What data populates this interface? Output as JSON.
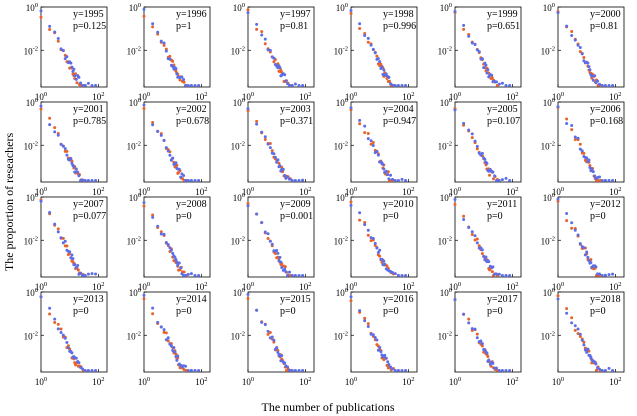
{
  "chart_data": {
    "type": "scatter",
    "layout": "4x6 grid of small multiples, log-log axes",
    "xlabel": "The number of publications",
    "ylabel": "The proportion of reseachers",
    "xscale": "log",
    "yscale": "log",
    "xlim": [
      1,
      200
    ],
    "ylim": [
      0.0002,
      1
    ],
    "x_ticks": [
      {
        "base": "10",
        "exp": "0",
        "value": 1
      },
      {
        "base": "10",
        "exp": "2",
        "value": 100
      }
    ],
    "y_ticks": [
      {
        "base": "10",
        "exp": "0",
        "value": 1
      },
      {
        "base": "10",
        "exp": "-2",
        "value": 0.01
      }
    ],
    "colors": {
      "series_orange": "#e8622a",
      "series_blue": "#5b6ee8"
    },
    "panels": [
      {
        "year_label": "y=1995",
        "p_label": "p=0.125"
      },
      {
        "year_label": "y=1996",
        "p_label": "p=1"
      },
      {
        "year_label": "y=1997",
        "p_label": "p=0.81"
      },
      {
        "year_label": "y=1998",
        "p_label": "p=0.996"
      },
      {
        "year_label": "y=1999",
        "p_label": "p=0.651"
      },
      {
        "year_label": "y=2000",
        "p_label": "p=0.81"
      },
      {
        "year_label": "y=2001",
        "p_label": "p=0.785"
      },
      {
        "year_label": "y=2002",
        "p_label": "p=0.678"
      },
      {
        "year_label": "y=2003",
        "p_label": "p=0.371"
      },
      {
        "year_label": "y=2004",
        "p_label": "p=0.947"
      },
      {
        "year_label": "y=2005",
        "p_label": "p=0.107"
      },
      {
        "year_label": "y=2006",
        "p_label": "p=0.168"
      },
      {
        "year_label": "y=2007",
        "p_label": "p=0.077"
      },
      {
        "year_label": "y=2008",
        "p_label": "p=0"
      },
      {
        "year_label": "y=2009",
        "p_label": "p=0.001"
      },
      {
        "year_label": "y=2010",
        "p_label": "p=0"
      },
      {
        "year_label": "y=2011",
        "p_label": "p=0"
      },
      {
        "year_label": "y=2012",
        "p_label": "p=0"
      },
      {
        "year_label": "y=2013",
        "p_label": "p=0"
      },
      {
        "year_label": "y=2014",
        "p_label": "p=0"
      },
      {
        "year_label": "y=2015",
        "p_label": "p=0"
      },
      {
        "year_label": "y=2016",
        "p_label": "p=0"
      },
      {
        "year_label": "y=2017",
        "p_label": "p=0"
      },
      {
        "year_label": "y=2018",
        "p_label": "p=0"
      }
    ],
    "series_template": {
      "orange": {
        "x": [
          1,
          2,
          3,
          4,
          5,
          6,
          7,
          8,
          9,
          10,
          11,
          12,
          13,
          14,
          15,
          16,
          18,
          20,
          22,
          25,
          30
        ],
        "y": [
          0.5,
          0.12,
          0.05,
          0.025,
          0.014,
          0.009,
          0.006,
          0.004,
          0.003,
          0.0022,
          0.0017,
          0.0013,
          0.0011,
          0.0009,
          0.0007,
          0.0006,
          0.00045,
          0.0004,
          0.0003,
          0.00025,
          0.0002
        ]
      },
      "blue": {
        "x": [
          1,
          2,
          3,
          4,
          5,
          6,
          7,
          8,
          9,
          10,
          11,
          12,
          13,
          14,
          15,
          17,
          19,
          21,
          24,
          28,
          35,
          45,
          60,
          80
        ],
        "y": [
          0.55,
          0.13,
          0.055,
          0.027,
          0.015,
          0.009,
          0.006,
          0.0042,
          0.003,
          0.0023,
          0.0018,
          0.0014,
          0.0011,
          0.0009,
          0.0008,
          0.0006,
          0.0005,
          0.0004,
          0.0003,
          0.00025,
          0.0002,
          0.0002,
          0.0002,
          0.0002
        ]
      }
    }
  }
}
